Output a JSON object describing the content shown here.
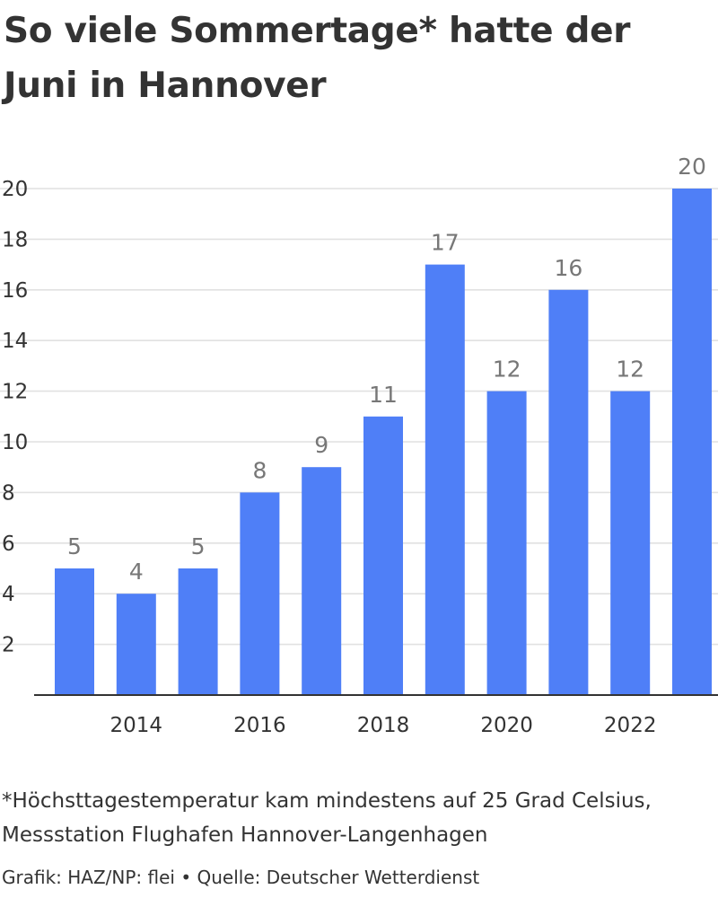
{
  "title": "So viele Sommertage* hatte der Juni in Hannover",
  "footnote": "*Höchsttagestemperatur kam mindestens auf 25 Grad Celsius, Messstation Flughafen Hannover-Langenhagen",
  "credit": {
    "author": "Grafik: HAZ/NP: flei",
    "separator": "•",
    "source": "Quelle: Deutscher Wetterdienst"
  },
  "colors": {
    "bar": "#4f7ff7",
    "grid": "#e1e1e1",
    "axis": "#333333",
    "text": "#333333",
    "data_label": "#777777"
  },
  "chart_data": {
    "type": "bar",
    "title": "So viele Sommertage* hatte der Juni in Hannover",
    "xlabel": "",
    "ylabel": "",
    "categories": [
      2013,
      2014,
      2015,
      2016,
      2017,
      2018,
      2019,
      2020,
      2021,
      2022,
      2023
    ],
    "values": [
      5,
      4,
      5,
      8,
      9,
      11,
      17,
      12,
      16,
      12,
      20
    ],
    "x_tick_labels": [
      "2014",
      "2016",
      "2018",
      "2020",
      "2022"
    ],
    "y_ticks": [
      2,
      4,
      6,
      8,
      10,
      12,
      14,
      16,
      18,
      20
    ],
    "ylim": [
      0,
      20
    ],
    "grid": true,
    "legend": "none",
    "data_labels": true
  }
}
